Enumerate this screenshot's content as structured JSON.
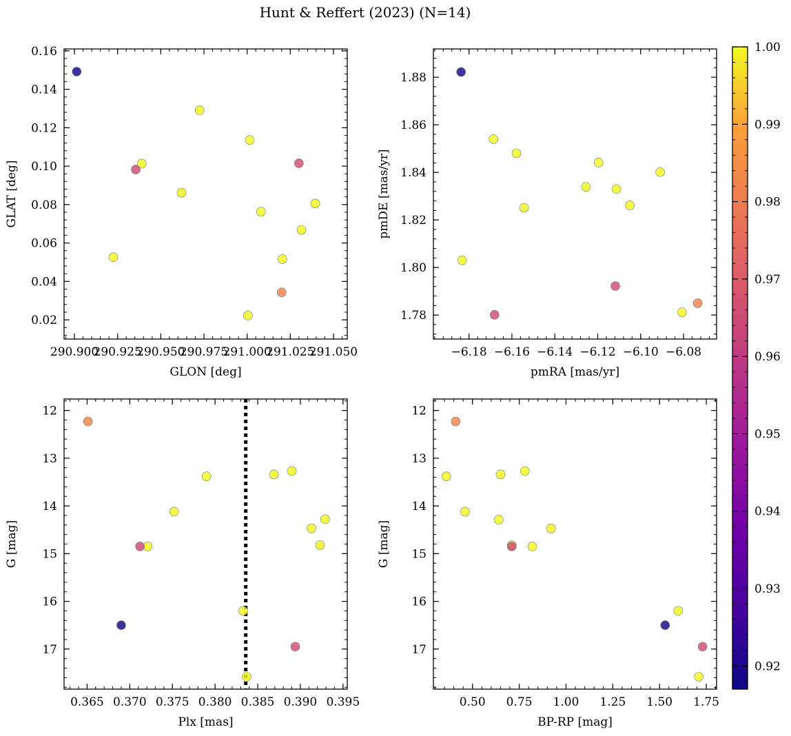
{
  "figure": {
    "title": "Hunt & Reffert (2023) (N=14)"
  },
  "colorbar": {
    "min": 0.917,
    "max": 1.0,
    "ticks": [
      0.92,
      0.93,
      0.94,
      0.95,
      0.96,
      0.97,
      0.98,
      0.99,
      1.0
    ],
    "tick_labels": [
      "0.92",
      "0.93",
      "0.94",
      "0.95",
      "0.96",
      "0.97",
      "0.98",
      "0.99",
      "1.00"
    ],
    "colormap": "plasma"
  },
  "chart_data": [
    {
      "type": "scatter",
      "id": "glon-glat",
      "xlabel": "GLON [deg]",
      "ylabel": "GLAT [deg]",
      "xlim": [
        290.894,
        291.058
      ],
      "ylim": [
        0.01,
        0.161
      ],
      "xticks": [
        290.9,
        290.925,
        290.95,
        290.975,
        291.0,
        291.025,
        291.05
      ],
      "xtick_labels": [
        "290.900",
        "290.925",
        "290.950",
        "290.975",
        "291.000",
        "291.025",
        "291.050"
      ],
      "yticks": [
        0.02,
        0.04,
        0.06,
        0.08,
        0.1,
        0.12,
        0.14,
        0.16
      ],
      "ytick_labels": [
        "0.02",
        "0.04",
        "0.06",
        "0.08",
        "0.10",
        "0.12",
        "0.14",
        "0.16"
      ],
      "invert_y": false,
      "points": [
        {
          "x": 290.9013,
          "y": 0.1492,
          "c": 0.917
        },
        {
          "x": 290.9225,
          "y": 0.0526,
          "c": 1.0
        },
        {
          "x": 290.9355,
          "y": 0.0982,
          "c": 0.965
        },
        {
          "x": 290.939,
          "y": 0.1013,
          "c": 1.0
        },
        {
          "x": 290.962,
          "y": 0.0862,
          "c": 1.0
        },
        {
          "x": 290.9725,
          "y": 0.1291,
          "c": 1.0
        },
        {
          "x": 291.0005,
          "y": 0.0222,
          "c": 1.0
        },
        {
          "x": 291.0015,
          "y": 0.1136,
          "c": 1.0
        },
        {
          "x": 291.008,
          "y": 0.0763,
          "c": 1.0
        },
        {
          "x": 291.02,
          "y": 0.0343,
          "c": 0.982
        },
        {
          "x": 291.0205,
          "y": 0.0516,
          "c": 1.0
        },
        {
          "x": 291.03,
          "y": 0.1015,
          "c": 0.966
        },
        {
          "x": 291.0315,
          "y": 0.0668,
          "c": 1.0
        },
        {
          "x": 291.0395,
          "y": 0.0806,
          "c": 1.0
        }
      ]
    },
    {
      "type": "scatter",
      "id": "pm",
      "xlabel": "pmRA [mas/yr]",
      "ylabel": "pmDE [mas/yr]",
      "xlim": [
        -6.1966,
        -6.0646
      ],
      "ylim": [
        1.7699,
        1.8919
      ],
      "xticks": [
        -6.18,
        -6.16,
        -6.14,
        -6.12,
        -6.1,
        -6.08
      ],
      "xtick_labels": [
        "−6.18",
        "−6.16",
        "−6.14",
        "−6.12",
        "−6.10",
        "−6.08"
      ],
      "yticks": [
        1.78,
        1.8,
        1.82,
        1.84,
        1.86,
        1.88
      ],
      "ytick_labels": [
        "1.78",
        "1.80",
        "1.82",
        "1.84",
        "1.86",
        "1.88"
      ],
      "invert_y": false,
      "points": [
        {
          "x": -6.1837,
          "y": 1.8822,
          "c": 0.917
        },
        {
          "x": -6.1832,
          "y": 1.803,
          "c": 1.0
        },
        {
          "x": -6.1686,
          "y": 1.854,
          "c": 1.0
        },
        {
          "x": -6.1681,
          "y": 1.7801,
          "c": 0.965
        },
        {
          "x": -6.1579,
          "y": 1.848,
          "c": 1.0
        },
        {
          "x": -6.1543,
          "y": 1.8251,
          "c": 1.0
        },
        {
          "x": -6.1255,
          "y": 1.8339,
          "c": 1.0
        },
        {
          "x": -6.1196,
          "y": 1.8441,
          "c": 1.0
        },
        {
          "x": -6.1118,
          "y": 1.7922,
          "c": 0.966
        },
        {
          "x": -6.1113,
          "y": 1.833,
          "c": 1.0
        },
        {
          "x": -6.105,
          "y": 1.8261,
          "c": 1.0
        },
        {
          "x": -6.0909,
          "y": 1.8401,
          "c": 1.0
        },
        {
          "x": -6.0807,
          "y": 1.7812,
          "c": 1.0
        },
        {
          "x": -6.0734,
          "y": 1.785,
          "c": 0.982
        }
      ]
    },
    {
      "type": "scatter",
      "id": "plx-g",
      "xlabel": "Plx [mas]",
      "ylabel": "G [mag]",
      "xlim": [
        0.3623,
        0.3955
      ],
      "ylim": [
        17.84,
        11.76
      ],
      "xticks": [
        0.365,
        0.37,
        0.375,
        0.38,
        0.385,
        0.39,
        0.395
      ],
      "xtick_labels": [
        "0.365",
        "0.370",
        "0.375",
        "0.380",
        "0.385",
        "0.390",
        "0.395"
      ],
      "yticks": [
        12,
        13,
        14,
        15,
        16,
        17
      ],
      "ytick_labels": [
        "12",
        "13",
        "14",
        "15",
        "16",
        "17"
      ],
      "invert_y": true,
      "vline": 0.3836,
      "points": [
        {
          "x": 0.3651,
          "y": 12.23,
          "c": 0.982
        },
        {
          "x": 0.369,
          "y": 16.5,
          "c": 0.917
        },
        {
          "x": 0.3712,
          "y": 14.85,
          "c": 0.965
        },
        {
          "x": 0.3721,
          "y": 14.85,
          "c": 1.0
        },
        {
          "x": 0.3752,
          "y": 14.12,
          "c": 1.0
        },
        {
          "x": 0.379,
          "y": 13.38,
          "c": 1.0
        },
        {
          "x": 0.3833,
          "y": 16.2,
          "c": 1.0
        },
        {
          "x": 0.3837,
          "y": 17.58,
          "c": 1.0
        },
        {
          "x": 0.3869,
          "y": 13.34,
          "c": 1.0
        },
        {
          "x": 0.389,
          "y": 13.27,
          "c": 1.0
        },
        {
          "x": 0.3894,
          "y": 16.95,
          "c": 0.966
        },
        {
          "x": 0.3913,
          "y": 14.47,
          "c": 1.0
        },
        {
          "x": 0.3923,
          "y": 14.82,
          "c": 1.0
        },
        {
          "x": 0.3929,
          "y": 14.28,
          "c": 1.0
        }
      ]
    },
    {
      "type": "scatter",
      "id": "cmd",
      "xlabel": "BP-RP [mag]",
      "ylabel": "G [mag]",
      "xlim": [
        0.291,
        1.805
      ],
      "ylim": [
        17.84,
        11.76
      ],
      "xticks": [
        0.5,
        0.75,
        1.0,
        1.25,
        1.5,
        1.75
      ],
      "xtick_labels": [
        "0.50",
        "0.75",
        "1.00",
        "1.25",
        "1.50",
        "1.75"
      ],
      "yticks": [
        12,
        13,
        14,
        15,
        16,
        17
      ],
      "ytick_labels": [
        "12",
        "13",
        "14",
        "15",
        "16",
        "17"
      ],
      "invert_y": true,
      "points": [
        {
          "x": 0.36,
          "y": 13.38,
          "c": 1.0
        },
        {
          "x": 0.41,
          "y": 12.23,
          "c": 0.982
        },
        {
          "x": 0.46,
          "y": 14.12,
          "c": 1.0
        },
        {
          "x": 0.64,
          "y": 14.29,
          "c": 1.0
        },
        {
          "x": 0.65,
          "y": 13.34,
          "c": 1.0
        },
        {
          "x": 0.71,
          "y": 14.85,
          "c": 0.965
        },
        {
          "x": 0.71,
          "y": 14.82,
          "c": 1.0
        },
        {
          "x": 0.78,
          "y": 13.27,
          "c": 1.0
        },
        {
          "x": 0.82,
          "y": 14.85,
          "c": 1.0
        },
        {
          "x": 0.92,
          "y": 14.47,
          "c": 1.0
        },
        {
          "x": 1.53,
          "y": 16.5,
          "c": 0.917
        },
        {
          "x": 1.6,
          "y": 16.2,
          "c": 1.0
        },
        {
          "x": 1.71,
          "y": 17.58,
          "c": 1.0
        },
        {
          "x": 1.73,
          "y": 16.95,
          "c": 0.966
        }
      ]
    }
  ]
}
